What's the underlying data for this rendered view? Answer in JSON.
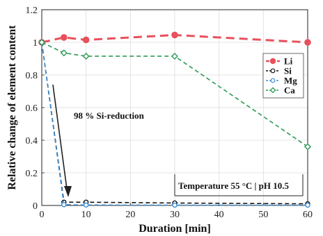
{
  "chart_data": {
    "type": "line",
    "xlabel": "Duration [min]",
    "ylabel": "Relative change of element content",
    "xlim": [
      0,
      60
    ],
    "ylim": [
      0,
      1.2
    ],
    "xticks": [
      "0",
      "10",
      "20",
      "30",
      "40",
      "50",
      "60"
    ],
    "yticks": [
      "0",
      "0.2",
      "0.4",
      "0.6",
      "0.8",
      "1",
      "1.2"
    ],
    "grid": true,
    "legend_position": "right",
    "series": [
      {
        "name": "Li",
        "color": "#e8505b",
        "marker": "circle-open",
        "style": "dashed-thick",
        "x": [
          0,
          5,
          10,
          30,
          60
        ],
        "y": [
          1.0,
          1.03,
          1.015,
          1.045,
          1.0
        ]
      },
      {
        "name": "Si",
        "color": "#111111",
        "marker": "circle-open",
        "style": "dashed",
        "x": [
          0,
          5,
          10,
          30,
          60
        ],
        "y": [
          1.0,
          0.02,
          0.02,
          0.015,
          0.01
        ]
      },
      {
        "name": "Mg",
        "color": "#3a8fd6",
        "marker": "circle-open",
        "style": "dashed",
        "x": [
          0,
          5,
          10,
          30,
          60
        ],
        "y": [
          1.0,
          0.005,
          0.003,
          0.002,
          0.002
        ]
      },
      {
        "name": "Ca",
        "color": "#2a9a55",
        "marker": "diamond-open",
        "style": "dashed",
        "x": [
          0,
          5,
          10,
          30,
          60
        ],
        "y": [
          1.0,
          0.935,
          0.915,
          0.915,
          0.36
        ]
      }
    ],
    "annotations": {
      "reduction_text": "98 % Si-reduction",
      "condition_text": "Temperature 55 °C | pH 10.5"
    }
  }
}
